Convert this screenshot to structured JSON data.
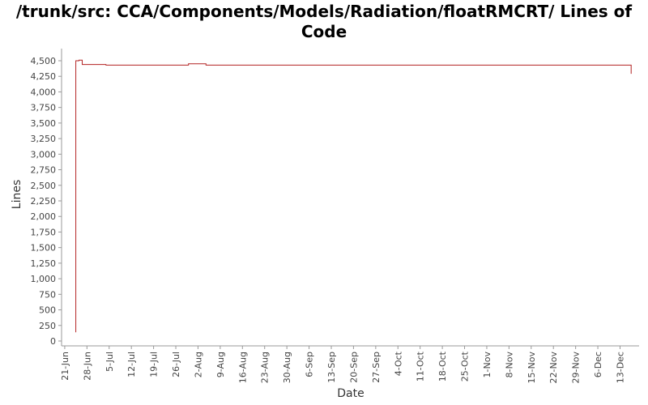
{
  "chart_data": {
    "type": "line",
    "title": "/trunk/src: CCA/Components/Models/Radiation/floatRMCRT/ Lines of Code",
    "xlabel": "Date",
    "ylabel": "Lines",
    "ylim": [
      0,
      4600
    ],
    "yticks": [
      0,
      250,
      500,
      750,
      1000,
      1250,
      1500,
      1750,
      2000,
      2250,
      2500,
      2750,
      3000,
      3250,
      3500,
      3750,
      4000,
      4250,
      4500
    ],
    "ytick_labels": [
      "0",
      "250",
      "500",
      "750",
      "1,000",
      "1,250",
      "1,500",
      "1,750",
      "2,000",
      "2,250",
      "2,500",
      "2,750",
      "3,000",
      "3,250",
      "3,500",
      "3,750",
      "4,000",
      "4,250",
      "4,500"
    ],
    "xlim": [
      -1,
      181
    ],
    "xticks": [
      0,
      7,
      14,
      21,
      28,
      35,
      42,
      49,
      56,
      63,
      70,
      77,
      84,
      91,
      98,
      105,
      112,
      119,
      126,
      133,
      140,
      147,
      154,
      161,
      168,
      175
    ],
    "xtick_labels": [
      "21-Jun",
      "28-Jun",
      "5-Jul",
      "12-Jul",
      "19-Jul",
      "26-Jul",
      "2-Aug",
      "9-Aug",
      "16-Aug",
      "23-Aug",
      "30-Aug",
      "6-Sep",
      "13-Sep",
      "20-Sep",
      "27-Sep",
      "4-Oct",
      "11-Oct",
      "18-Oct",
      "25-Oct",
      "1-Nov",
      "8-Nov",
      "15-Nov",
      "22-Nov",
      "29-Nov",
      "6-Dec",
      "13-Dec"
    ],
    "grid": false,
    "line_style": "step",
    "series": [
      {
        "color": "#b22222",
        "points": [
          [
            3.5,
            140
          ],
          [
            3.5,
            4500
          ],
          [
            4.5,
            4500
          ],
          [
            4.5,
            4510
          ],
          [
            5.5,
            4510
          ],
          [
            5.5,
            4440
          ],
          [
            13,
            4440
          ],
          [
            13,
            4430
          ],
          [
            39,
            4430
          ],
          [
            39,
            4450
          ],
          [
            44.5,
            4450
          ],
          [
            44.5,
            4430
          ],
          [
            178.5,
            4430
          ],
          [
            178.5,
            4290
          ]
        ]
      }
    ]
  }
}
